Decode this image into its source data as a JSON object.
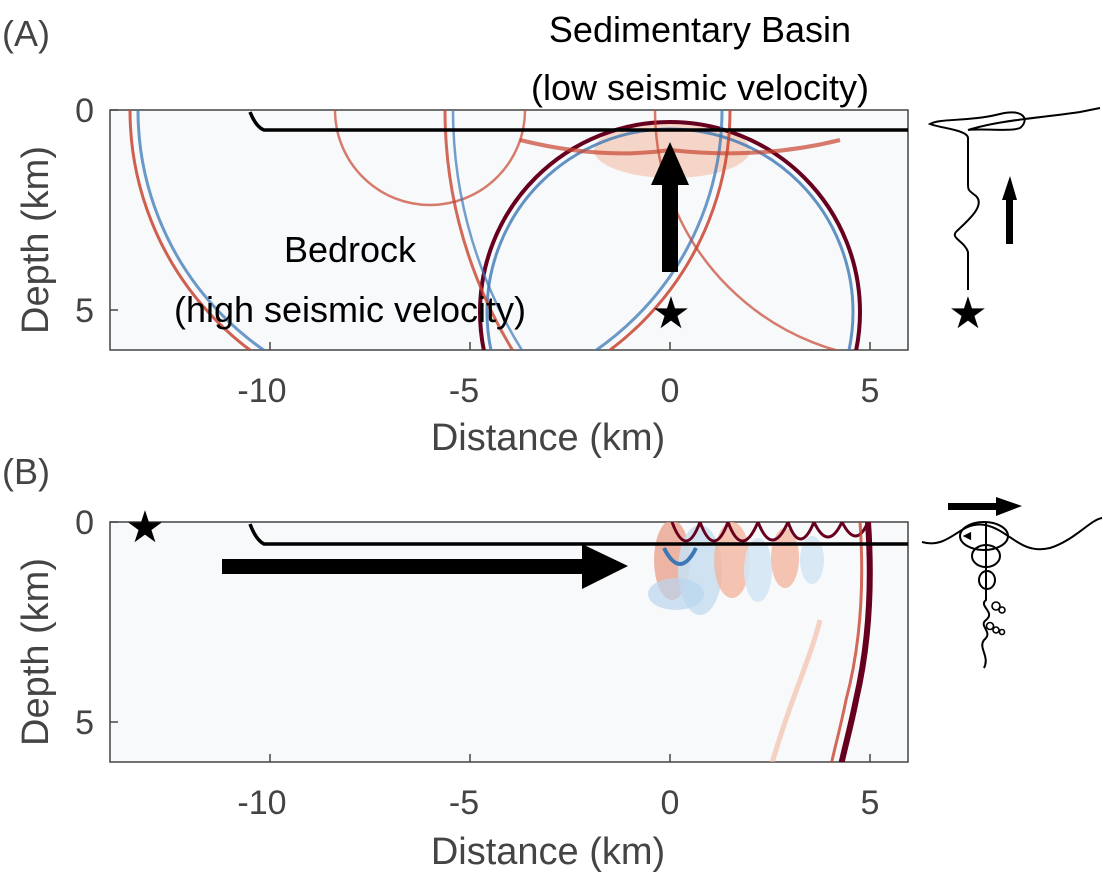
{
  "panel_a": {
    "label": "(A)",
    "annotation_basin_line1": "Sedimentary Basin",
    "annotation_basin_line2": "(low seismic velocity)",
    "annotation_bedrock_line1": "Bedrock",
    "annotation_bedrock_line2": "(high seismic velocity)",
    "xlabel": "Distance (km)",
    "ylabel": "Depth (km)",
    "xticks": [
      "-10",
      "-5",
      "0",
      "5"
    ],
    "yticks": [
      "0",
      "5"
    ],
    "source_symbol": "★",
    "inset_source_symbol": "★"
  },
  "panel_b": {
    "label": "(B)",
    "xlabel": "Distance (km)",
    "ylabel": "Depth (km)",
    "xticks": [
      "-10",
      "-5",
      "0",
      "5"
    ],
    "yticks": [
      "0",
      "5"
    ],
    "source_symbol": "★"
  },
  "colors": {
    "background": "#f7f9fb",
    "red_wave": "#c8442f",
    "blue_wave": "#3b78b5",
    "dark_wave": "#67001f",
    "axis": "#444444",
    "ink": "#000000"
  },
  "chart_data": [
    {
      "type": "heatmap",
      "xlim": [
        -14,
        6
      ],
      "ylim": [
        0,
        6
      ],
      "basin_depth_km": 0.5,
      "basin_edge_x_km": -10.3,
      "source": {
        "x": 0,
        "depth": 5
      },
      "wavefronts": [
        {
          "kind": "direct",
          "cx": 0,
          "cz": 5,
          "r": 4.7
        },
        {
          "kind": "refracted",
          "cx": -6,
          "cz": 0,
          "r": 3.4
        },
        {
          "kind": "refracted",
          "cx": 6,
          "cz": 0,
          "r": 5.8
        }
      ]
    },
    {
      "type": "heatmap",
      "xlim": [
        -14,
        6
      ],
      "ylim": [
        0,
        6
      ],
      "basin_depth_km": 0.5,
      "basin_edge_x_km": -10.3,
      "source": {
        "x": -13,
        "depth": 0
      },
      "wavefronts": [
        {
          "kind": "surface_trapped",
          "x_start": 0,
          "x_end": 5
        },
        {
          "kind": "body_front",
          "x_top": 5,
          "x_bottom": 4.3
        }
      ]
    }
  ]
}
